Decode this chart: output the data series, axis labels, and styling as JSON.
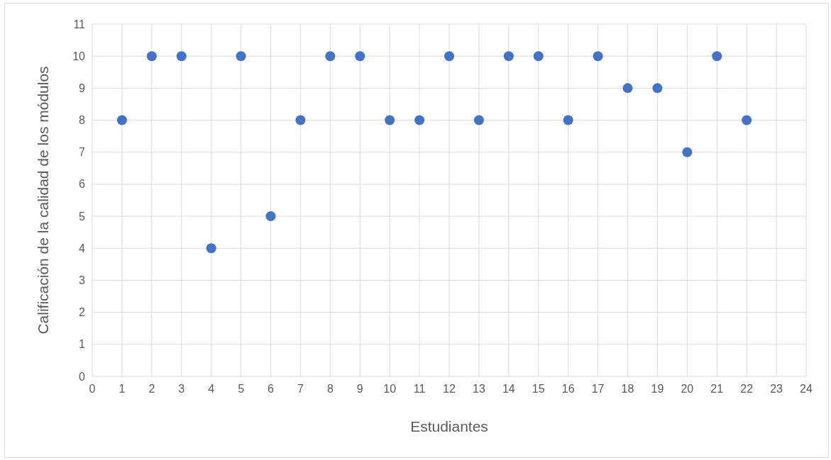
{
  "chart_data": {
    "type": "scatter",
    "xlabel": "Estudiantes",
    "ylabel": "Calificación de la calidad de los módulos",
    "x": [
      1,
      2,
      3,
      4,
      5,
      6,
      7,
      8,
      9,
      10,
      11,
      12,
      13,
      14,
      15,
      16,
      17,
      18,
      19,
      20,
      21,
      22
    ],
    "values": [
      8,
      10,
      10,
      4,
      10,
      5,
      8,
      10,
      10,
      8,
      8,
      10,
      8,
      10,
      10,
      8,
      10,
      9,
      9,
      7,
      10,
      8
    ],
    "color": "#4472c4",
    "marker": "circle",
    "xlim": [
      0,
      24
    ],
    "xticks": [
      0,
      1,
      2,
      3,
      4,
      5,
      6,
      7,
      8,
      9,
      10,
      11,
      12,
      13,
      14,
      15,
      16,
      17,
      18,
      19,
      20,
      21,
      22,
      23,
      24
    ],
    "ylim": [
      0,
      11
    ],
    "yticks": [
      0,
      1,
      2,
      3,
      4,
      5,
      6,
      7,
      8,
      9,
      10,
      11
    ],
    "grid": true
  }
}
